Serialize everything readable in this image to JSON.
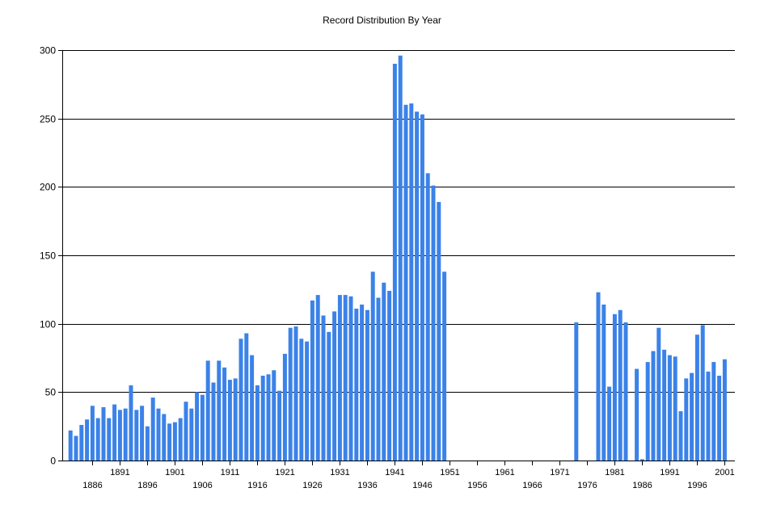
{
  "chart_data": {
    "type": "bar",
    "title": "Record Distribution By Year",
    "xlabel": "",
    "ylabel": "",
    "ylim": [
      0,
      300
    ],
    "xlim": [
      1881,
      2001
    ],
    "y_ticks": [
      0,
      50,
      100,
      150,
      200,
      250,
      300
    ],
    "x_ticks_upper": [
      1891,
      1901,
      1911,
      1921,
      1931,
      1941,
      1951,
      1961,
      1971,
      1981,
      1991,
      2001
    ],
    "x_ticks_lower": [
      1886,
      1896,
      1906,
      1916,
      1926,
      1936,
      1946,
      1956,
      1966,
      1976,
      1986,
      1996
    ],
    "grid": true,
    "bar_color": "#3b82e8",
    "x": [
      1882,
      1883,
      1884,
      1885,
      1886,
      1887,
      1888,
      1889,
      1890,
      1891,
      1892,
      1893,
      1894,
      1895,
      1896,
      1897,
      1898,
      1899,
      1900,
      1901,
      1902,
      1903,
      1904,
      1905,
      1906,
      1907,
      1908,
      1909,
      1910,
      1911,
      1912,
      1913,
      1914,
      1915,
      1916,
      1917,
      1918,
      1919,
      1920,
      1921,
      1922,
      1923,
      1924,
      1925,
      1926,
      1927,
      1928,
      1929,
      1930,
      1931,
      1932,
      1933,
      1934,
      1935,
      1936,
      1937,
      1938,
      1939,
      1940,
      1941,
      1942,
      1943,
      1944,
      1945,
      1946,
      1947,
      1948,
      1949,
      1950,
      1974,
      1978,
      1979,
      1980,
      1981,
      1982,
      1983,
      1985,
      1986,
      1987,
      1988,
      1989,
      1990,
      1991,
      1992,
      1993,
      1994,
      1995,
      1996,
      1997,
      1998,
      1999,
      2000,
      2001
    ],
    "values": [
      22,
      18,
      26,
      30,
      40,
      31,
      39,
      31,
      41,
      37,
      38,
      55,
      37,
      40,
      25,
      46,
      38,
      34,
      27,
      28,
      31,
      43,
      38,
      50,
      48,
      73,
      57,
      73,
      68,
      59,
      60,
      89,
      93,
      77,
      55,
      62,
      63,
      66,
      51,
      78,
      97,
      98,
      89,
      87,
      117,
      121,
      106,
      94,
      109,
      121,
      121,
      120,
      111,
      114,
      110,
      138,
      119,
      130,
      124,
      290,
      296,
      260,
      261,
      255,
      253,
      210,
      201,
      189,
      138,
      101,
      123,
      114,
      54,
      107,
      110,
      101,
      67,
      1,
      72,
      80,
      97,
      81,
      77,
      76,
      36,
      60,
      64,
      92,
      99,
      65,
      72,
      62,
      74
    ]
  }
}
